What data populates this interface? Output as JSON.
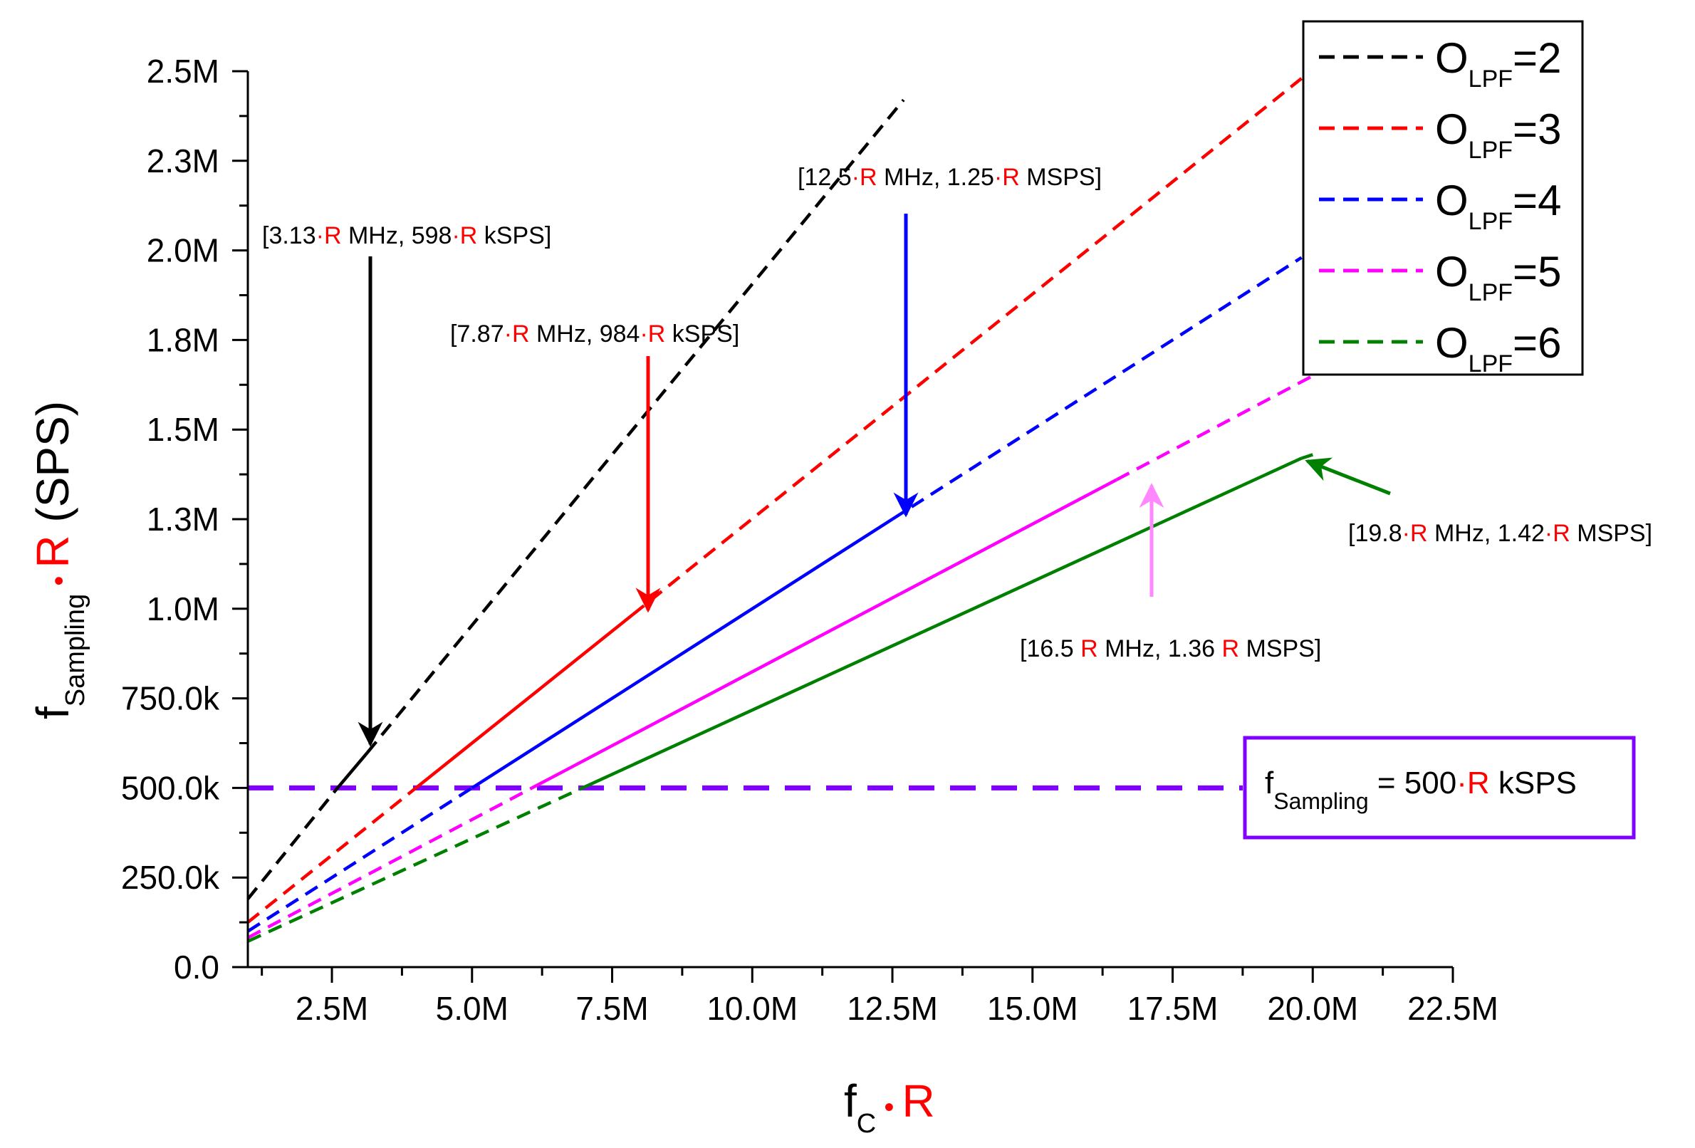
{
  "chart_data": {
    "type": "line",
    "xlabel": {
      "main": "f",
      "sub": "C",
      "dot": "•",
      "r": "R"
    },
    "ylabel": {
      "main": "f",
      "sub": "Sampling",
      "dot": "•",
      "r": "R",
      "unit": "(SPS)"
    },
    "xlim": [
      1000000,
      22500000
    ],
    "ylim": [
      0,
      2500000
    ],
    "x_ticks": [
      {
        "v": 2500000,
        "label": "2.5M"
      },
      {
        "v": 5000000,
        "label": "5.0M"
      },
      {
        "v": 7500000,
        "label": "7.5M"
      },
      {
        "v": 10000000,
        "label": "10.0M"
      },
      {
        "v": 12500000,
        "label": "12.5M"
      },
      {
        "v": 15000000,
        "label": "15.0M"
      },
      {
        "v": 17500000,
        "label": "17.5M"
      },
      {
        "v": 20000000,
        "label": "20.0M"
      },
      {
        "v": 22500000,
        "label": "22.5M"
      }
    ],
    "y_ticks": [
      {
        "v": 0,
        "label": "0.0"
      },
      {
        "v": 250000,
        "label": "250.0k"
      },
      {
        "v": 500000,
        "label": "500.0k"
      },
      {
        "v": 750000,
        "label": "750.0k"
      },
      {
        "v": 1000000,
        "label": "1.0M"
      },
      {
        "v": 1250000,
        "label": "1.3M"
      },
      {
        "v": 1500000,
        "label": "1.5M"
      },
      {
        "v": 1750000,
        "label": "1.8M"
      },
      {
        "v": 2000000,
        "label": "2.0M"
      },
      {
        "v": 2250000,
        "label": "2.3M"
      },
      {
        "v": 2500000,
        "label": "2.5M"
      }
    ],
    "series": [
      {
        "name": "O_LPF=2",
        "base": "O",
        "sub": "LPF",
        "tail": "=2",
        "color": "#000000",
        "dash_start": [
          1000000,
          190000
        ],
        "solid_start": [
          2600000,
          500000
        ],
        "solid_end": [
          3130000,
          598000
        ],
        "dash_end": [
          12700000,
          2420000
        ]
      },
      {
        "name": "O_LPF=3",
        "base": "O",
        "sub": "LPF",
        "tail": "=3",
        "color": "#ff0000",
        "dash_start": [
          1000000,
          125000
        ],
        "solid_start": [
          4000000,
          500000
        ],
        "solid_end": [
          7870000,
          984000
        ],
        "dash_end": [
          19800000,
          2480000
        ]
      },
      {
        "name": "O_LPF=4",
        "base": "O",
        "sub": "LPF",
        "tail": "=4",
        "color": "#0000ff",
        "dash_start": [
          1000000,
          100000
        ],
        "solid_start": [
          5000000,
          500000
        ],
        "solid_end": [
          12500000,
          1250000
        ],
        "dash_end": [
          19800000,
          1980000
        ]
      },
      {
        "name": "O_LPF=5",
        "base": "O",
        "sub": "LPF",
        "tail": "=5",
        "color": "#ff00ff",
        "dash_start": [
          1000000,
          82000
        ],
        "solid_start": [
          6070000,
          500000
        ],
        "solid_end": [
          16500000,
          1360000
        ],
        "dash_end": [
          20000000,
          1650000
        ]
      },
      {
        "name": "O_LPF=6",
        "base": "O",
        "sub": "LPF",
        "tail": "=6",
        "color": "#008000",
        "dash_start": [
          1000000,
          72000
        ],
        "solid_start": [
          6970000,
          500000
        ],
        "solid_end": [
          19800000,
          1420000
        ],
        "dash_end": [
          20000000,
          1430000
        ]
      }
    ],
    "threshold": {
      "y": 500000,
      "color": "#8000ff",
      "label": {
        "main": "f",
        "sub": "Sampling",
        "eq": " = 500",
        "dot": "·",
        "r": "R",
        "unit": " kSPS"
      }
    },
    "annotations": [
      {
        "series": 0,
        "color": "#000000",
        "x": 3130000,
        "y": 598000,
        "direction": "down",
        "parts": [
          "[3.13",
          "·R",
          " MHz, 598",
          "·R",
          " kSPS]"
        ]
      },
      {
        "series": 1,
        "color": "#ff0000",
        "x": 7870000,
        "y": 984000,
        "direction": "down",
        "parts": [
          "[7.87",
          "·R",
          " MHz, 984",
          "·R",
          " kSPS]"
        ]
      },
      {
        "series": 2,
        "color": "#0000ff",
        "x": 12500000,
        "y": 1250000,
        "direction": "down",
        "parts": [
          "[12.5",
          "·R",
          " MHz, 1.25",
          "·R",
          " MSPS]"
        ]
      },
      {
        "series": 3,
        "color": "#ff88ff",
        "x": 16500000,
        "y": 1360000,
        "direction": "up",
        "parts": [
          "[16.5 ",
          "R",
          " MHz, 1.36 ",
          "R",
          " MSPS]"
        ]
      },
      {
        "series": 4,
        "color": "#008000",
        "x": 19800000,
        "y": 1420000,
        "direction": "left",
        "parts": [
          "[19.8",
          "·R",
          " MHz, 1.42",
          "·R",
          " MSPS]"
        ]
      }
    ],
    "legend": "top-right"
  },
  "colors": {
    "axis": "#000000",
    "accent_r": "#ff0000"
  }
}
